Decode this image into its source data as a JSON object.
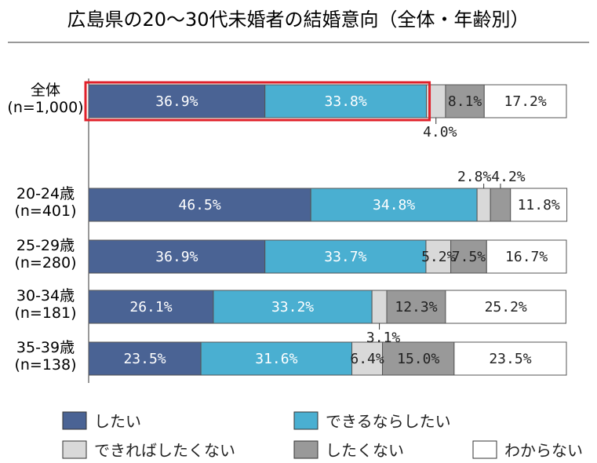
{
  "chart_data": {
    "type": "bar",
    "orientation": "horizontal",
    "stacked": true,
    "title": "広島県の20～30代未婚者の結婚意向（全体・年齢別）",
    "categories": [
      "全体\n(n=1,000)",
      "20-24歳\n(n=401)",
      "25-29歳\n(n=280)",
      "30-34歳\n(n=181)",
      "35-39歳\n(n=138)"
    ],
    "series": [
      {
        "name": "したい",
        "color": "#4a6394",
        "values": [
          36.9,
          46.5,
          36.9,
          26.1,
          23.5
        ],
        "labels": [
          "36.9%",
          "46.5%",
          "36.9%",
          "26.1%",
          "23.5%"
        ]
      },
      {
        "name": "できるならしたい",
        "color": "#4aafd1",
        "values": [
          33.8,
          34.8,
          33.7,
          33.2,
          31.6
        ],
        "labels": [
          "33.8%",
          "34.8%",
          "33.7%",
          "33.2%",
          "31.6%"
        ]
      },
      {
        "name": "できればしたくない",
        "color": "#d9d9d9",
        "values": [
          4.0,
          2.8,
          5.2,
          3.1,
          6.4
        ],
        "labels": [
          "4.0%",
          "2.8%",
          "5.2%",
          "3.1%",
          "6.4%"
        ]
      },
      {
        "name": "したくない",
        "color": "#999999",
        "values": [
          8.1,
          4.2,
          7.5,
          12.3,
          15.0
        ],
        "labels": [
          "8.1%",
          "4.2%",
          "7.5%",
          "12.3%",
          "15.0%"
        ]
      },
      {
        "name": "わからない",
        "color": "#ffffff",
        "values": [
          17.2,
          11.8,
          16.7,
          25.2,
          23.5
        ],
        "labels": [
          "17.2%",
          "11.8%",
          "16.7%",
          "25.2%",
          "23.5%"
        ]
      }
    ],
    "xlim": [
      0,
      100
    ],
    "highlight_color": "#e0202a",
    "legend_position": "bottom"
  }
}
